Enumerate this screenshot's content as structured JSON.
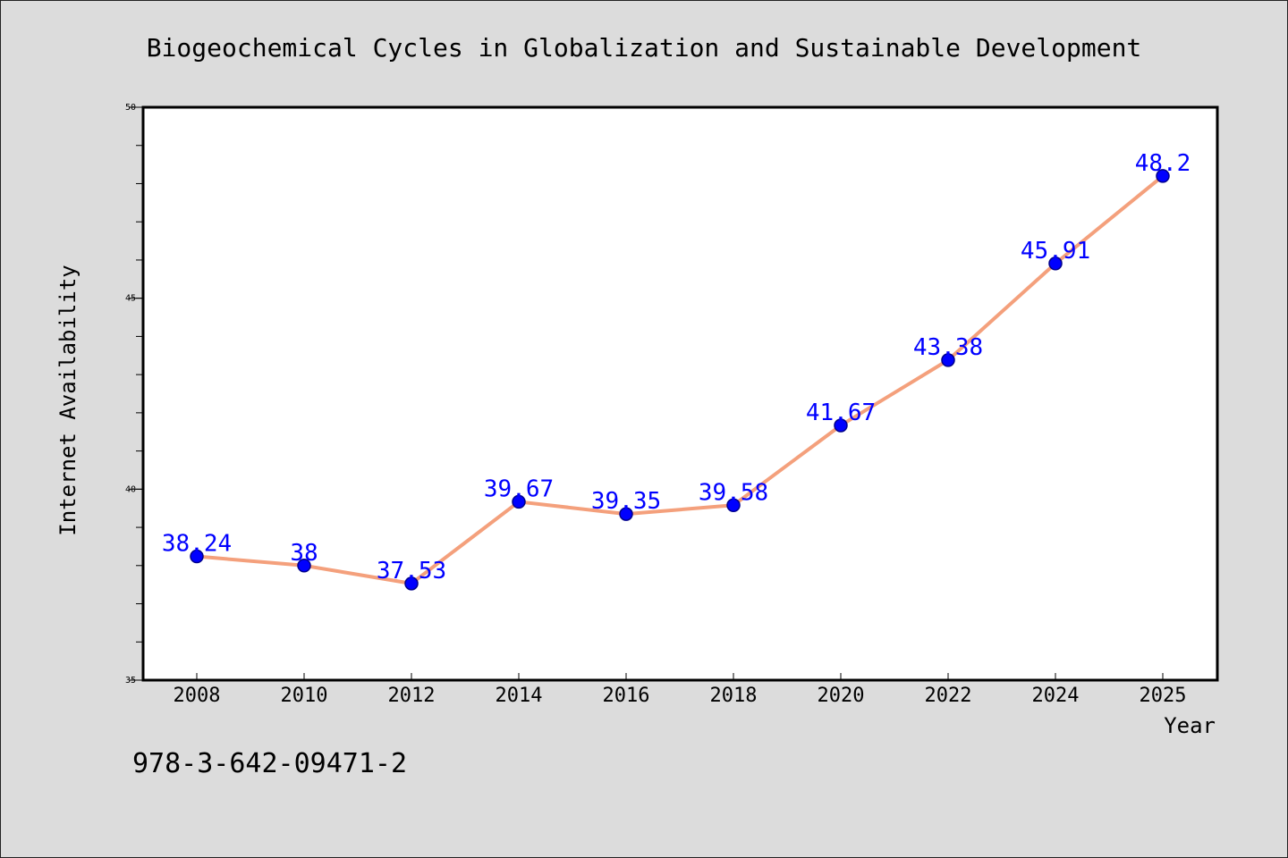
{
  "chart_data": {
    "type": "line",
    "title": "Biogeochemical Cycles in Globalization and Sustainable Development",
    "xlabel": "Year",
    "ylabel": "Internet Availability",
    "categories": [
      "2008",
      "2010",
      "2012",
      "2014",
      "2016",
      "2018",
      "2020",
      "2022",
      "2024",
      "2025"
    ],
    "series": [
      {
        "values": [
          38.24,
          38,
          37.53,
          39.67,
          39.35,
          39.58,
          41.67,
          43.38,
          45.91,
          48.2
        ]
      }
    ],
    "data_labels": [
      "38.24",
      "38",
      "37.53",
      "39.67",
      "39.35",
      "39.58",
      "41.67",
      "43.38",
      "45.91",
      "48.2"
    ],
    "ylim": [
      35,
      50
    ],
    "yticks": [
      35,
      40,
      45,
      50
    ],
    "grid": false,
    "colors": {
      "line": "#f4a07c",
      "marker": "#0000ff",
      "label": "#0000ff",
      "background": "#dcdcdc",
      "plot_background": "#ffffff"
    }
  },
  "annotation": "978-3-642-09471-2"
}
